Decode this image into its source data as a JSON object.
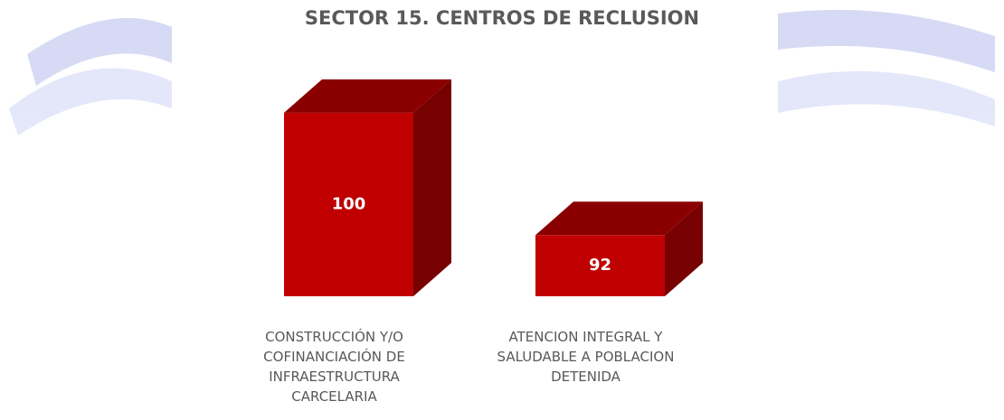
{
  "chart_data": {
    "type": "bar3d",
    "title": "SECTOR 15. CENTROS DE RECLUSION",
    "categories": [
      "CONSTRUCCIÓN Y/O COFINANCIACIÓN DE INFRAESTRUCTURA CARCELARIA",
      "ATENCION INTEGRAL Y SALUDABLE A POBLACION DETENIDA"
    ],
    "values": [
      100,
      92
    ],
    "color": "#c00000",
    "ylim": [
      88,
      102
    ]
  }
}
